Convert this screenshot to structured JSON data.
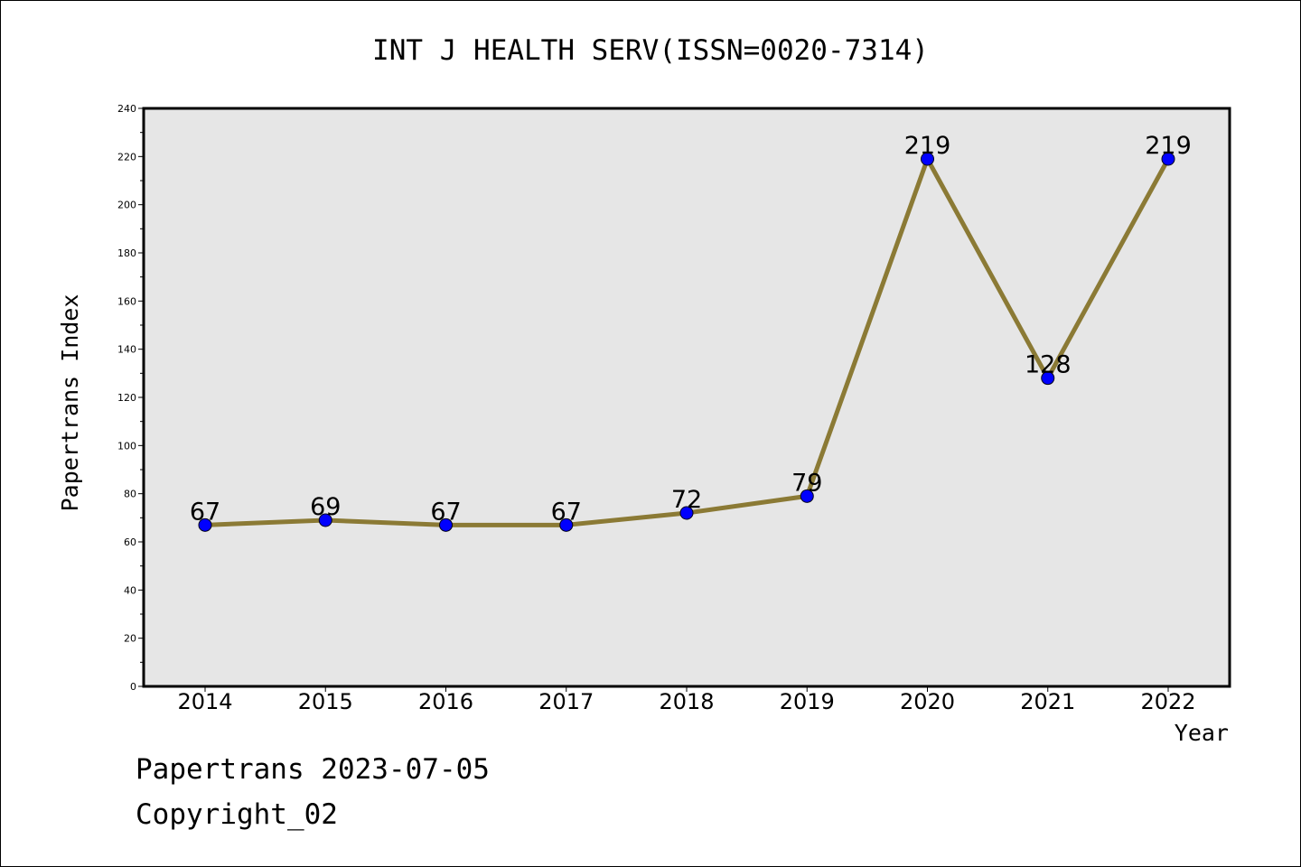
{
  "chart_data": {
    "type": "line",
    "title": "INT J HEALTH SERV(ISSN=0020-7314)",
    "xlabel": "Year",
    "ylabel": "Papertrans Index",
    "categories": [
      "2014",
      "2015",
      "2016",
      "2017",
      "2018",
      "2019",
      "2020",
      "2021",
      "2022"
    ],
    "values": [
      67,
      69,
      67,
      67,
      72,
      79,
      219,
      128,
      219
    ],
    "data_labels": [
      "67",
      "69",
      "67",
      "67",
      "72",
      "79",
      "219",
      "128",
      "219"
    ],
    "ylim": [
      0,
      240
    ],
    "y_ticks": [
      0,
      20,
      40,
      60,
      80,
      100,
      120,
      140,
      160,
      180,
      200,
      220,
      240
    ],
    "y_tick_labels": [
      "0",
      "20",
      "40",
      "60",
      "80",
      "100",
      "120",
      "140",
      "160",
      "180",
      "200",
      "220",
      "240"
    ],
    "grid": false,
    "line_color": "#8b7a35",
    "marker_color": "#0000ff",
    "plot_background": "#e6e6e6"
  },
  "footer": {
    "line1": "Papertrans 2023-07-05",
    "line2": "Copyright_02"
  }
}
